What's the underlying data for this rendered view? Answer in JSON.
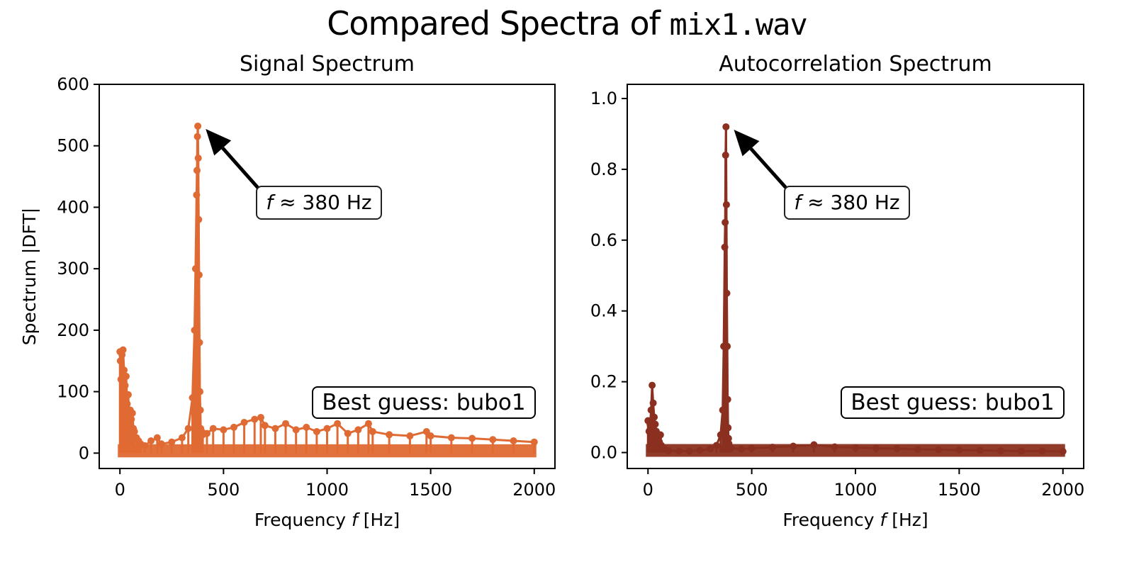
{
  "figure": {
    "suptitle_text": "Compared Spectra of ",
    "suptitle_file": "mix1.wav"
  },
  "chart_data": [
    {
      "type": "line",
      "title": "Signal Spectrum",
      "xlabel_prefix": "Frequency ",
      "xlabel_var": "f",
      "xlabel_suffix": " [Hz]",
      "ylabel": "Spectrum |DFT|",
      "xlim": [
        -100,
        2100
      ],
      "ylim": [
        -25,
        600
      ],
      "xticks": [
        0,
        500,
        1000,
        1500,
        2000
      ],
      "yticks": [
        0,
        100,
        200,
        300,
        400,
        500,
        600
      ],
      "color": "#E06A33",
      "grid": false,
      "series": [
        {
          "x": [
            0,
            2,
            5,
            10,
            15,
            20,
            25,
            30,
            35,
            40,
            45,
            50,
            55,
            60,
            65,
            70,
            80,
            90,
            100,
            120,
            150,
            180,
            200,
            250,
            300,
            330,
            350,
            360,
            365,
            370,
            372,
            374,
            376,
            378,
            380,
            382,
            384,
            386,
            388,
            390,
            395,
            400,
            420,
            450,
            500,
            550,
            600,
            650,
            680,
            700,
            750,
            800,
            850,
            900,
            950,
            1000,
            1050,
            1100,
            1150,
            1200,
            1220,
            1300,
            1400,
            1480,
            1500,
            1600,
            1700,
            1800,
            1900,
            2000
          ],
          "y": [
            165,
            150,
            120,
            160,
            168,
            135,
            110,
            125,
            80,
            95,
            60,
            70,
            55,
            65,
            40,
            35,
            25,
            20,
            15,
            12,
            20,
            25,
            15,
            18,
            25,
            40,
            90,
            200,
            300,
            420,
            460,
            515,
            532,
            480,
            380,
            290,
            180,
            100,
            70,
            40,
            35,
            30,
            32,
            40,
            38,
            42,
            50,
            55,
            58,
            45,
            40,
            48,
            38,
            42,
            35,
            40,
            48,
            32,
            38,
            48,
            35,
            30,
            28,
            35,
            28,
            25,
            24,
            22,
            20,
            18
          ]
        }
      ],
      "annotation": {
        "text_var": "f",
        "text_rest": " ≈ 380 Hz",
        "point": [
          380,
          532
        ]
      },
      "guess_label": "Best guess: bubo1"
    },
    {
      "type": "line",
      "title": "Autocorrelation Spectrum",
      "xlabel_prefix": "Frequency ",
      "xlabel_var": "f",
      "xlabel_suffix": " [Hz]",
      "ylabel": "",
      "xlim": [
        -100,
        2100
      ],
      "ylim": [
        -0.045,
        1.04
      ],
      "xticks": [
        0,
        500,
        1000,
        1500,
        2000
      ],
      "yticks": [
        0.0,
        0.2,
        0.4,
        0.6,
        0.8,
        1.0
      ],
      "color": "#8B3020",
      "grid": false,
      "series": [
        {
          "x": [
            0,
            5,
            10,
            15,
            20,
            25,
            30,
            35,
            40,
            45,
            50,
            55,
            60,
            65,
            70,
            80,
            100,
            150,
            200,
            250,
            300,
            330,
            350,
            360,
            365,
            370,
            372,
            374,
            376,
            378,
            380,
            382,
            384,
            386,
            388,
            390,
            395,
            400,
            450,
            500,
            600,
            700,
            800,
            900,
            1000,
            1100,
            1200,
            1300,
            1400,
            1500,
            1600,
            1700,
            1800,
            1900,
            2000
          ],
          "y": [
            0.09,
            0.06,
            0.08,
            0.12,
            0.19,
            0.14,
            0.1,
            0.08,
            0.06,
            0.04,
            0.05,
            0.03,
            0.05,
            0.02,
            0.015,
            0.01,
            0.005,
            0.004,
            0.004,
            0.006,
            0.01,
            0.02,
            0.05,
            0.12,
            0.3,
            0.58,
            0.65,
            0.84,
            0.92,
            0.7,
            0.45,
            0.3,
            0.15,
            0.07,
            0.04,
            0.025,
            0.015,
            0.012,
            0.01,
            0.012,
            0.015,
            0.018,
            0.022,
            0.016,
            0.014,
            0.012,
            0.011,
            0.009,
            0.008,
            0.007,
            0.006,
            0.005,
            0.004,
            0.004,
            0.003
          ]
        }
      ],
      "annotation": {
        "text_var": "f",
        "text_rest": " ≈ 380 Hz",
        "point": [
          380,
          0.92
        ]
      },
      "guess_label": "Best guess: bubo1"
    }
  ]
}
